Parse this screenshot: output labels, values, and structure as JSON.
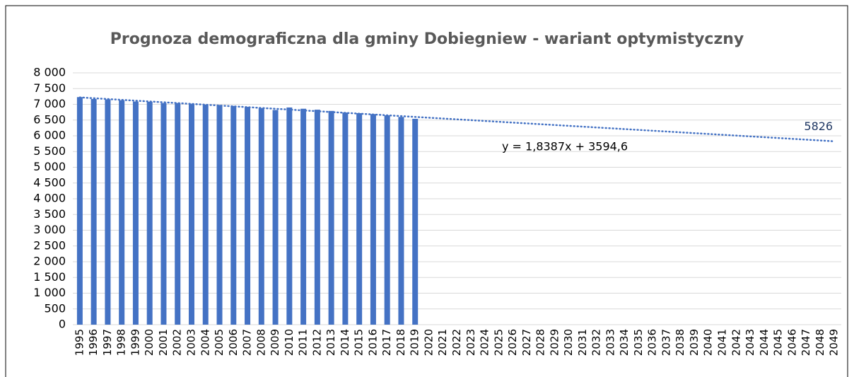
{
  "chart_data": {
    "type": "bar",
    "title": "Prognoza demograficzna dla gminy Dobiegniew - wariant optymistyczny",
    "categories": [
      "1995",
      "1996",
      "1997",
      "1998",
      "1999",
      "2000",
      "2001",
      "2002",
      "2003",
      "2004",
      "2005",
      "2006",
      "2007",
      "2008",
      "2009",
      "2010",
      "2011",
      "2012",
      "2013",
      "2014",
      "2015",
      "2016",
      "2017",
      "2018",
      "2019",
      "2020",
      "2021",
      "2022",
      "2023",
      "2024",
      "2025",
      "2026",
      "2027",
      "2028",
      "2029",
      "2030",
      "2031",
      "2032",
      "2033",
      "2034",
      "2035",
      "2036",
      "2037",
      "2038",
      "2039",
      "2040",
      "2041",
      "2042",
      "2043",
      "2044",
      "2045",
      "2046",
      "2047",
      "2048",
      "2049"
    ],
    "values": [
      7230,
      7170,
      7160,
      7130,
      7090,
      7080,
      7040,
      7040,
      7020,
      6990,
      6980,
      6950,
      6920,
      6880,
      6820,
      6900,
      6860,
      6830,
      6790,
      6740,
      6720,
      6690,
      6650,
      6600,
      6540,
      null,
      null,
      null,
      null,
      null,
      null,
      null,
      null,
      null,
      null,
      null,
      null,
      null,
      null,
      null,
      null,
      null,
      null,
      null,
      null,
      null,
      null,
      null,
      null,
      null,
      null,
      null,
      null,
      null,
      null
    ],
    "color": "#4472c4",
    "trendline": {
      "start": 7220,
      "end": 5826,
      "equation": "y = 1,8387x + 3594,6",
      "color": "#4472c4"
    },
    "ylim": [
      0,
      8000
    ],
    "yticks": [
      0,
      500,
      {
        "value": 1000,
        "label": "1 000"
      },
      {
        "value": 1500,
        "label": "1 500"
      },
      {
        "value": 2000,
        "label": "2 000"
      },
      {
        "value": 2500,
        "label": "2 500"
      },
      {
        "value": 3000,
        "label": "3 000"
      },
      {
        "value": 3500,
        "label": "3 500"
      },
      {
        "value": 4000,
        "label": "4 000"
      },
      {
        "value": 4500,
        "label": "4 500"
      },
      {
        "value": 5000,
        "label": "5 000"
      },
      {
        "value": 5500,
        "label": "5 500"
      },
      {
        "value": 6000,
        "label": "6 000"
      },
      {
        "value": 6500,
        "label": "6 500"
      },
      {
        "value": 7000,
        "label": "7 000"
      },
      {
        "value": 7500,
        "label": "7 500"
      },
      {
        "value": 8000,
        "label": "8 000"
      }
    ],
    "grid": true
  }
}
